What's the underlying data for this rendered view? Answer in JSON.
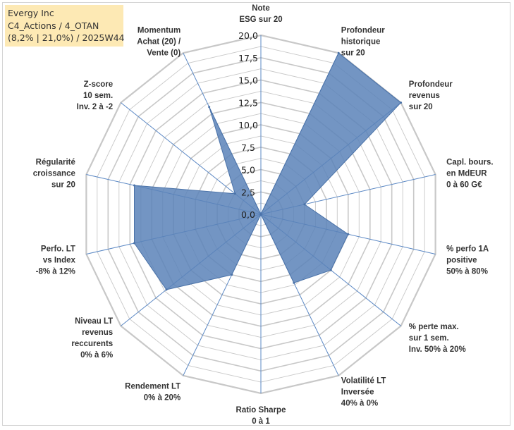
{
  "info": {
    "line1": "Evergy Inc",
    "line2": "C4_Actions / 4_OTAN",
    "line3": "(8,2% | 21,0%) / 2025W44"
  },
  "colors": {
    "fill": "#5a82b8",
    "stroke": "#4a72a8",
    "grid": "#c8c8c8",
    "spoke": "#5b88c4",
    "info_bg": "#fde9b4"
  },
  "chart_data": {
    "type": "radar",
    "range": [
      0,
      20
    ],
    "ticks": [
      "0,0",
      "2,5",
      "5,0",
      "7,5",
      "10,0",
      "12,5",
      "15,0",
      "17,5",
      "20,0"
    ],
    "grid": true,
    "legend": "none",
    "axes": [
      {
        "label": [
          "Note",
          "ESG sur 20"
        ],
        "value": 0
      },
      {
        "label": [
          "Profondeur",
          "historique",
          "sur 20"
        ],
        "value": 20
      },
      {
        "label": [
          "Profondeur",
          "revenus",
          "sur 20"
        ],
        "value": 20
      },
      {
        "label": [
          "Capl. bours.",
          "en MdEUR",
          "0 à 60 G€"
        ],
        "value": 5
      },
      {
        "label": [
          "% perfo 1A",
          "positive",
          "50% à 80%"
        ],
        "value": 10
      },
      {
        "label": [
          "% perte max.",
          "sur 1 sem.",
          "Inv. 50% à 20%"
        ],
        "value": 10
      },
      {
        "label": [
          "Volatilité LT",
          "Inversée",
          "40% à 0%"
        ],
        "value": 8.5
      },
      {
        "label": [
          "Ratio Sharpe",
          "0 à 1"
        ],
        "value": 0
      },
      {
        "label": [
          "Rendement LT",
          "0% à 20%"
        ],
        "value": 7.5
      },
      {
        "label": [
          "Niveau LT",
          "revenus",
          "reccurents",
          "0% à 6%"
        ],
        "value": 13.5
      },
      {
        "label": [
          "Perfo. LT",
          "vs Index",
          "-8% à 12%"
        ],
        "value": 14.5
      },
      {
        "label": [
          "Régularité",
          "croissance",
          "sur 20"
        ],
        "value": 14.5
      },
      {
        "label": [
          "Z-score",
          "10 sem.",
          "Inv. 2 à -2"
        ],
        "value": 3.7
      },
      {
        "label": [
          "Momentum",
          "Achat (20) /",
          "Vente (0)"
        ],
        "value": 13.3
      }
    ]
  }
}
